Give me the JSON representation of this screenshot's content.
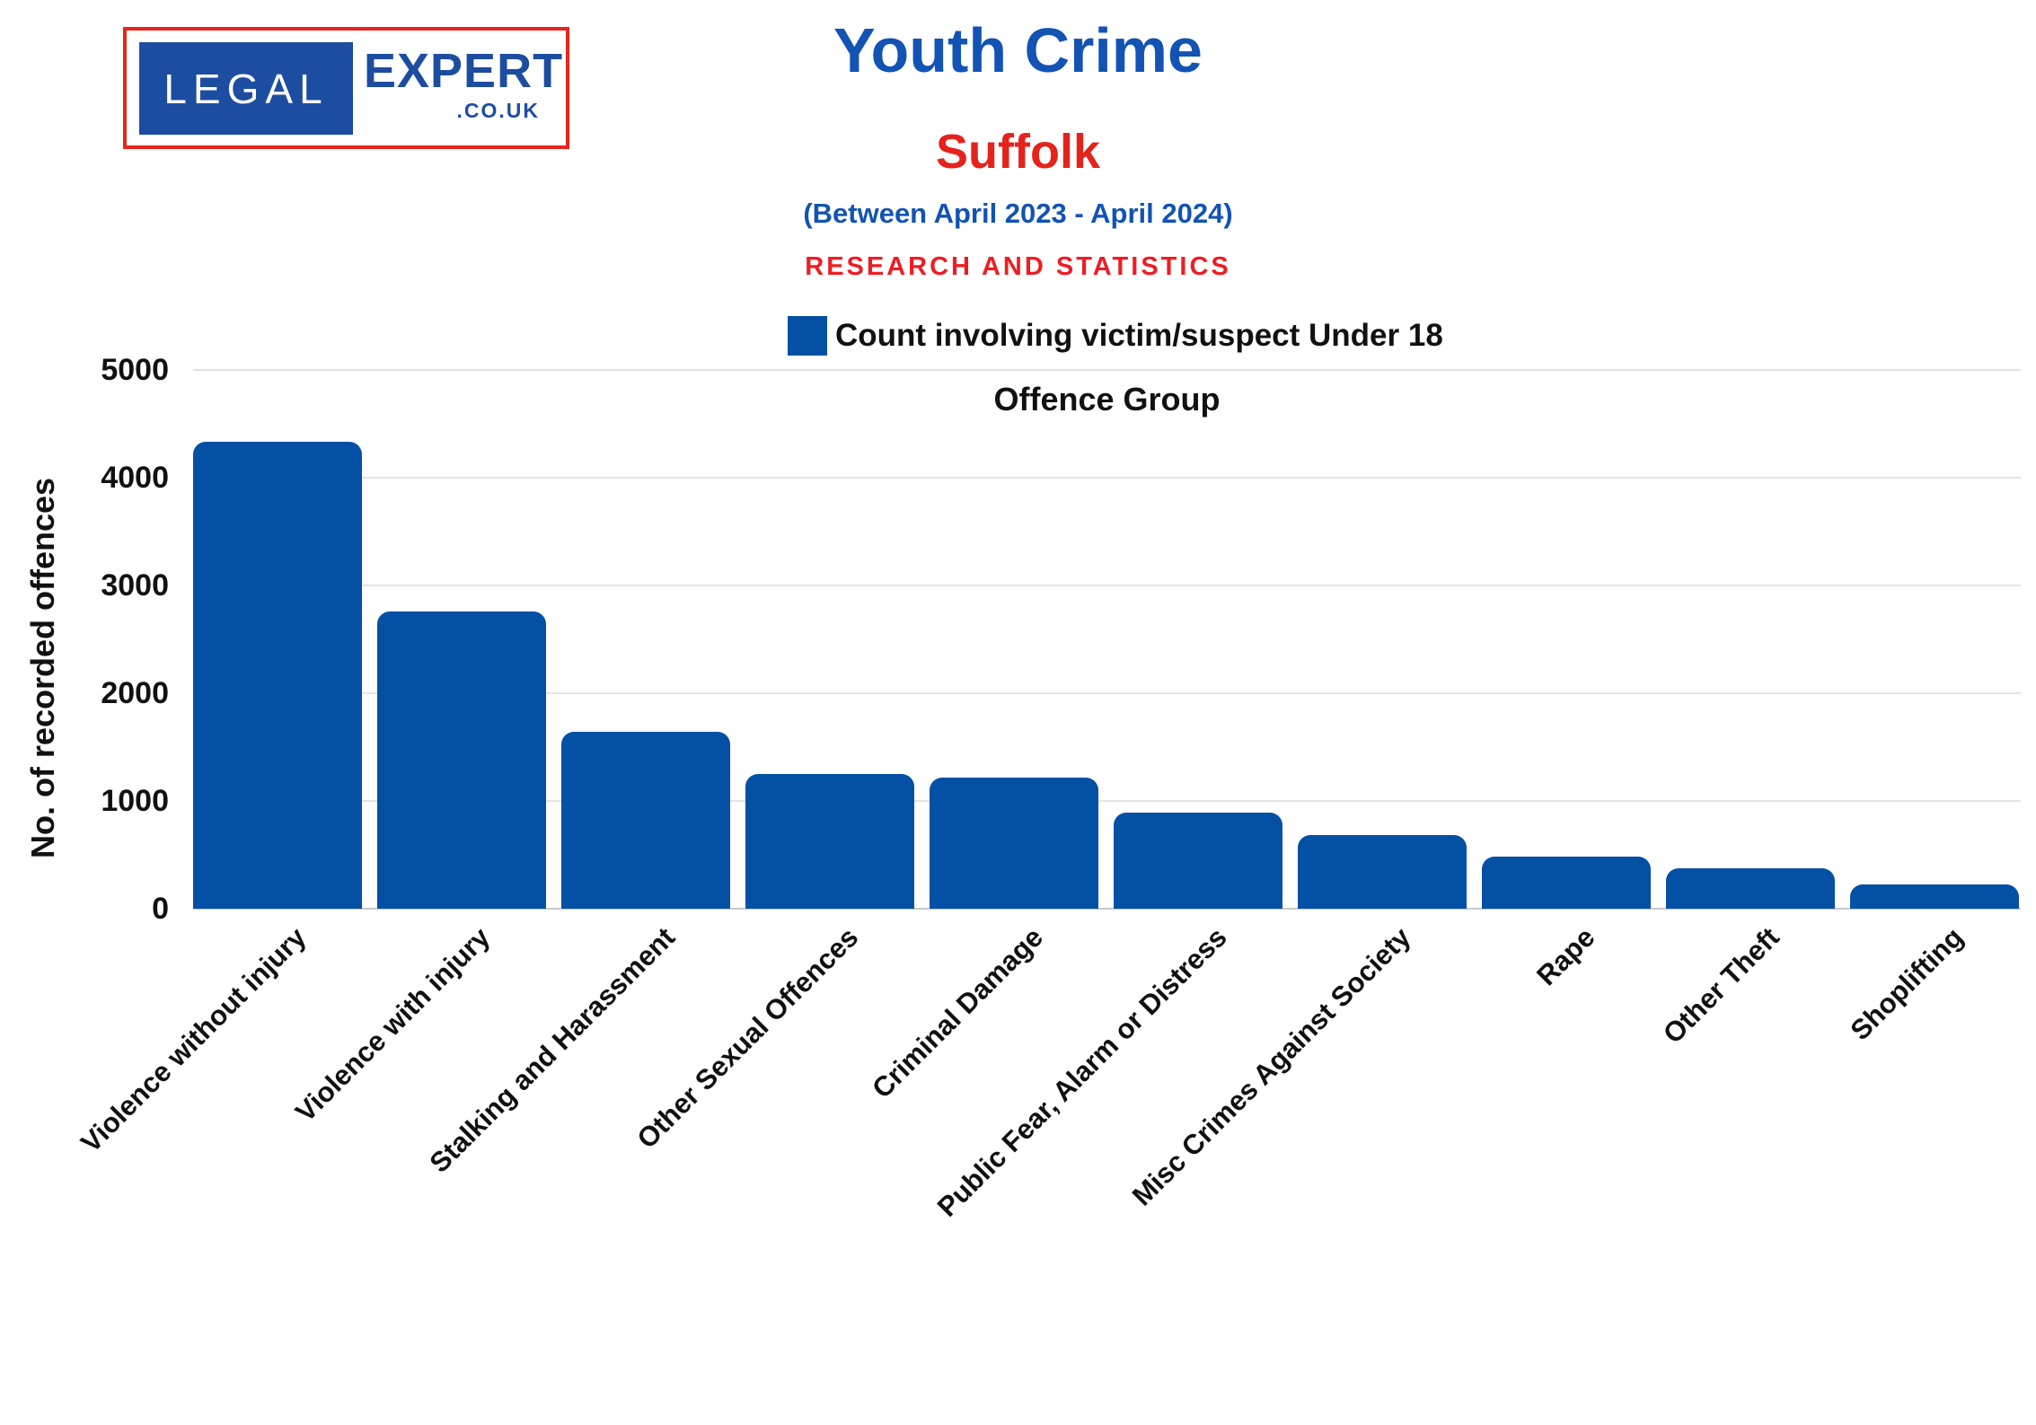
{
  "logo": {
    "word1": "LEGAL",
    "word2": "EXPERT",
    "word3": ".CO.UK",
    "box_color": "#1d4da0",
    "border_color": "#e8251f"
  },
  "header": {
    "title": "Youth Crime",
    "region": "Suffolk",
    "period": "(Between April 2023 - April 2024)",
    "tagline": "RESEARCH AND STATISTICS"
  },
  "legend": {
    "label": "Count involving victim/suspect Under 18",
    "swatch_color": "#0450a5"
  },
  "axes": {
    "x_title": "Offence Group",
    "y_title": "No. of recorded offences"
  },
  "chart_data": {
    "type": "bar",
    "title": "Youth Crime - Suffolk (Between April 2023 - April 2024)",
    "xlabel": "Offence Group",
    "ylabel": "No. of recorded offences",
    "series_name": "Count involving victim/suspect Under 18",
    "categories": [
      "Violence without injury",
      "Violence with injury",
      "Stalking and Harassment",
      "Other Sexual Offences",
      "Criminal Damage",
      "Public Fear, Alarm or Distress",
      "Misc Crimes Against Society",
      "Rape",
      "Other Theft",
      "Shoplifting"
    ],
    "values": [
      4330,
      2760,
      1640,
      1250,
      1220,
      890,
      680,
      480,
      375,
      225
    ],
    "ylim": [
      0,
      5000
    ],
    "yticks": [
      5000,
      4000,
      3000,
      2000,
      1000,
      0
    ],
    "grid": true,
    "bar_color": "#0450a5",
    "legend_position": "top-center"
  },
  "colors": {
    "title_blue": "#1253b4",
    "accent_red": "#e3231c",
    "bar_blue": "#0450a5",
    "gridline": "#e4e4e4",
    "baseline": "#c9c9c9",
    "text": "#111111"
  }
}
